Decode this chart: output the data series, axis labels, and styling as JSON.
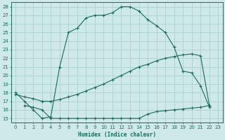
{
  "xlabel": "Humidex (Indice chaleur)",
  "background_color": "#cfe8e8",
  "grid_color": "#b0d4d4",
  "line_color": "#1a6b5e",
  "xlim": [
    -0.5,
    23.5
  ],
  "ylim": [
    14.5,
    28.5
  ],
  "xticks": [
    0,
    1,
    2,
    3,
    4,
    5,
    6,
    7,
    8,
    9,
    10,
    11,
    12,
    13,
    14,
    15,
    16,
    17,
    18,
    19,
    20,
    21,
    22,
    23
  ],
  "yticks": [
    15,
    16,
    17,
    18,
    19,
    20,
    21,
    22,
    23,
    24,
    25,
    26,
    27,
    28
  ],
  "curve1_x": [
    0,
    1,
    2,
    3,
    4,
    5,
    6,
    7,
    8,
    9,
    10,
    11,
    12,
    13,
    14,
    15,
    16,
    17,
    18,
    19,
    20,
    21,
    22
  ],
  "curve1_y": [
    18.0,
    17.0,
    16.0,
    15.0,
    15.2,
    21.0,
    25.0,
    25.5,
    26.7,
    27.0,
    27.0,
    27.3,
    28.0,
    28.0,
    27.5,
    26.5,
    25.8,
    25.0,
    23.3,
    20.5,
    20.3,
    18.8,
    16.3
  ],
  "curve2_x": [
    0,
    1,
    2,
    3,
    4,
    5,
    6,
    7,
    8,
    9,
    10,
    11,
    12,
    13,
    14,
    15,
    16,
    17,
    18,
    19,
    20,
    21,
    22
  ],
  "curve2_y": [
    17.8,
    17.5,
    17.3,
    17.0,
    17.0,
    17.2,
    17.5,
    17.8,
    18.2,
    18.6,
    19.0,
    19.5,
    20.0,
    20.5,
    21.0,
    21.3,
    21.7,
    22.0,
    22.2,
    22.4,
    22.5,
    22.3,
    16.5
  ],
  "curve3_x": [
    1,
    2,
    3,
    4,
    5,
    6,
    7,
    8,
    9,
    10,
    11,
    12,
    13,
    14,
    15,
    16,
    17,
    18,
    19,
    20,
    21,
    22
  ],
  "curve3_y": [
    16.5,
    16.3,
    16.0,
    15.0,
    15.0,
    15.0,
    15.0,
    15.0,
    15.0,
    15.0,
    15.0,
    15.0,
    15.0,
    15.0,
    15.5,
    15.8,
    15.9,
    16.0,
    16.1,
    16.2,
    16.3,
    16.5
  ]
}
